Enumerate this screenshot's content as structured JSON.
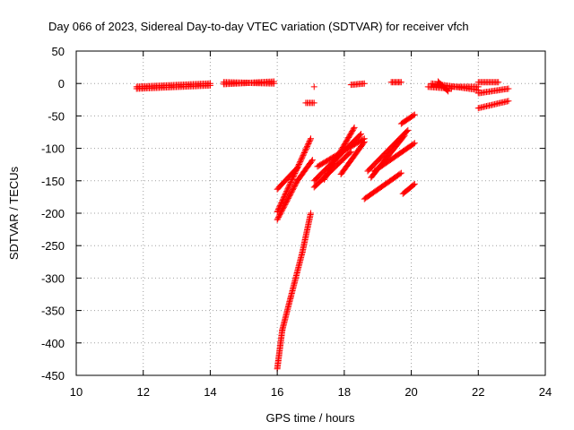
{
  "chart_data": {
    "type": "scatter",
    "title": "Day 066 of 2023, Sidereal Day-to-day VTEC variation (SDTVAR) for receiver vfch",
    "xlabel": "GPS time / hours",
    "ylabel": "SDTVAR / TECUs",
    "xlim": [
      10,
      24
    ],
    "ylim": [
      -450,
      50
    ],
    "xticks": [
      "10",
      "12",
      "14",
      "16",
      "18",
      "20",
      "22",
      "24"
    ],
    "yticks": [
      "50",
      "0",
      "-50",
      "-100",
      "-150",
      "-200",
      "-250",
      "-300",
      "-350",
      "-400",
      "-450"
    ],
    "grid": true,
    "marker": "+",
    "color": "#ff0000",
    "segments": [
      {
        "x0": 11.8,
        "y0": -5,
        "x1": 14.0,
        "y1": 0
      },
      {
        "x0": 11.8,
        "y0": -8,
        "x1": 14.0,
        "y1": -3
      },
      {
        "x0": 14.4,
        "y0": -1,
        "x1": 15.9,
        "y1": 3
      },
      {
        "x0": 14.4,
        "y0": 2,
        "x1": 15.9,
        "y1": 0
      },
      {
        "x0": 16.0,
        "y0": -440,
        "x1": 16.15,
        "y1": -380
      },
      {
        "x0": 16.15,
        "y0": -380,
        "x1": 16.4,
        "y1": -330
      },
      {
        "x0": 16.4,
        "y0": -330,
        "x1": 16.75,
        "y1": -260
      },
      {
        "x0": 16.75,
        "y0": -260,
        "x1": 17.0,
        "y1": -200
      },
      {
        "x0": 16.0,
        "y0": -163,
        "x1": 16.6,
        "y1": -130
      },
      {
        "x0": 16.0,
        "y0": -198,
        "x1": 17.0,
        "y1": -85
      },
      {
        "x0": 16.0,
        "y0": -210,
        "x1": 16.6,
        "y1": -150
      },
      {
        "x0": 16.85,
        "y0": -30,
        "x1": 17.1,
        "y1": -30
      },
      {
        "x0": 16.6,
        "y0": -150,
        "x1": 17.05,
        "y1": -118
      },
      {
        "x0": 17.1,
        "y0": -160,
        "x1": 18.2,
        "y1": -105
      },
      {
        "x0": 17.1,
        "y0": -150,
        "x1": 18.5,
        "y1": -78
      },
      {
        "x0": 17.4,
        "y0": -148,
        "x1": 18.3,
        "y1": -68
      },
      {
        "x0": 17.2,
        "y0": -128,
        "x1": 18.6,
        "y1": -85
      },
      {
        "x0": 17.9,
        "y0": -140,
        "x1": 18.6,
        "y1": -90
      },
      {
        "x0": 18.6,
        "y0": -178,
        "x1": 19.7,
        "y1": -138
      },
      {
        "x0": 18.7,
        "y0": -135,
        "x1": 19.9,
        "y1": -72
      },
      {
        "x0": 18.8,
        "y0": -145,
        "x1": 19.8,
        "y1": -80
      },
      {
        "x0": 18.9,
        "y0": -135,
        "x1": 20.1,
        "y1": -92
      },
      {
        "x0": 19.7,
        "y0": -62,
        "x1": 20.1,
        "y1": -48
      },
      {
        "x0": 19.75,
        "y0": -170,
        "x1": 20.1,
        "y1": -155
      },
      {
        "x0": 18.2,
        "y0": -2,
        "x1": 18.6,
        "y1": 0
      },
      {
        "x0": 19.4,
        "y0": 2,
        "x1": 19.7,
        "y1": 2
      },
      {
        "x0": 20.5,
        "y0": -5,
        "x1": 21.2,
        "y1": -8
      },
      {
        "x0": 20.6,
        "y0": 0,
        "x1": 22.0,
        "y1": -10
      },
      {
        "x0": 20.8,
        "y0": 3,
        "x1": 21.1,
        "y1": -12
      },
      {
        "x0": 21.2,
        "y0": -5,
        "x1": 22.0,
        "y1": -5
      },
      {
        "x0": 22.0,
        "y0": 2,
        "x1": 22.6,
        "y1": 2
      },
      {
        "x0": 22.0,
        "y0": -15,
        "x1": 22.9,
        "y1": -8
      },
      {
        "x0": 22.0,
        "y0": -38,
        "x1": 22.9,
        "y1": -27
      }
    ],
    "isolated_points": [
      {
        "x": 17.1,
        "y": -5
      }
    ]
  }
}
